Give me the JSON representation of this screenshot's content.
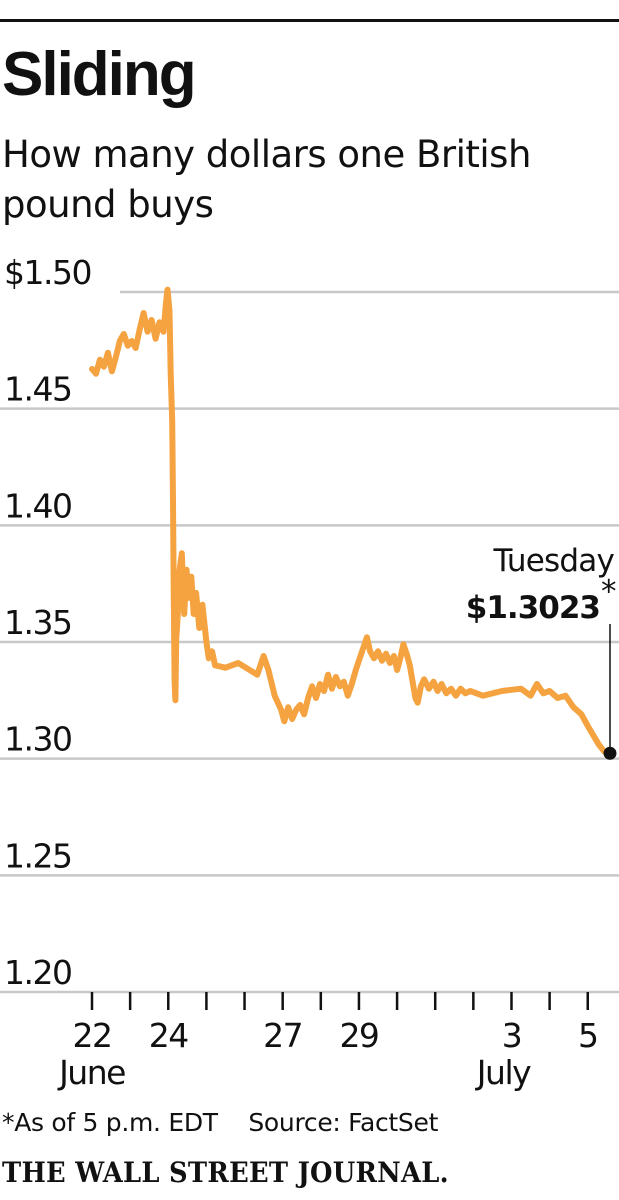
{
  "header": {
    "title": "Sliding",
    "subtitle": "How many dollars one British pound buys"
  },
  "footer": {
    "footnote": "*As of 5 p.m. EDT    Source: FactSet",
    "logo": "THE WALL STREET JOURNAL."
  },
  "colors": {
    "line": "#F4A340",
    "grid": "#C8C8C8",
    "text": "#111111"
  },
  "chart_data": {
    "type": "line",
    "title": "Sliding",
    "subtitle": "How many dollars one British pound buys",
    "ylim": [
      1.2,
      1.5
    ],
    "y_ticks": [
      {
        "value": 1.5,
        "label": "$1.50"
      },
      {
        "value": 1.45,
        "label": "1.45"
      },
      {
        "value": 1.4,
        "label": "1.40"
      },
      {
        "value": 1.35,
        "label": "1.35"
      },
      {
        "value": 1.3,
        "label": "1.30"
      },
      {
        "value": 1.25,
        "label": "1.25"
      },
      {
        "value": 1.2,
        "label": "1.20"
      }
    ],
    "grid": true,
    "x_ticks": [
      {
        "date": "2016-06-22",
        "label": "22",
        "sublabel": "June"
      },
      {
        "date": "2016-06-23",
        "label": "",
        "sublabel": ""
      },
      {
        "date": "2016-06-24",
        "label": "24",
        "sublabel": ""
      },
      {
        "date": "2016-06-25",
        "label": "",
        "sublabel": ""
      },
      {
        "date": "2016-06-26",
        "label": "",
        "sublabel": ""
      },
      {
        "date": "2016-06-27",
        "label": "27",
        "sublabel": ""
      },
      {
        "date": "2016-06-28",
        "label": "",
        "sublabel": ""
      },
      {
        "date": "2016-06-29",
        "label": "29",
        "sublabel": ""
      },
      {
        "date": "2016-06-30",
        "label": "",
        "sublabel": ""
      },
      {
        "date": "2016-07-01",
        "label": "",
        "sublabel": ""
      },
      {
        "date": "2016-07-02",
        "label": "",
        "sublabel": ""
      },
      {
        "date": "2016-07-03",
        "label": "3",
        "sublabel": "July"
      },
      {
        "date": "2016-07-04",
        "label": "",
        "sublabel": ""
      },
      {
        "date": "2016-07-05",
        "label": "5",
        "sublabel": ""
      }
    ],
    "series": [
      {
        "points": [
          [
            "2016-06-22T00:00",
            1.467
          ],
          [
            "2016-06-22T02:30",
            1.465
          ],
          [
            "2016-06-22T05:00",
            1.471
          ],
          [
            "2016-06-22T07:30",
            1.468
          ],
          [
            "2016-06-22T10:00",
            1.474
          ],
          [
            "2016-06-22T12:30",
            1.466
          ],
          [
            "2016-06-22T15:00",
            1.472
          ],
          [
            "2016-06-22T17:30",
            1.479
          ],
          [
            "2016-06-22T20:00",
            1.482
          ],
          [
            "2016-06-22T22:30",
            1.477
          ],
          [
            "2016-06-23T01:00",
            1.479
          ],
          [
            "2016-06-23T03:30",
            1.476
          ],
          [
            "2016-06-23T06:00",
            1.484
          ],
          [
            "2016-06-23T08:30",
            1.491
          ],
          [
            "2016-06-23T11:00",
            1.483
          ],
          [
            "2016-06-23T13:30",
            1.488
          ],
          [
            "2016-06-23T16:00",
            1.48
          ],
          [
            "2016-06-23T18:30",
            1.487
          ],
          [
            "2016-06-23T21:00",
            1.483
          ],
          [
            "2016-06-23T22:30",
            1.495
          ],
          [
            "2016-06-23T23:30",
            1.501
          ],
          [
            "2016-06-24T00:45",
            1.492
          ],
          [
            "2016-06-24T01:30",
            1.465
          ],
          [
            "2016-06-24T02:30",
            1.445
          ],
          [
            "2016-06-24T03:00",
            1.41
          ],
          [
            "2016-06-24T03:30",
            1.368
          ],
          [
            "2016-06-24T04:00",
            1.333
          ],
          [
            "2016-06-24T04:30",
            1.325
          ],
          [
            "2016-06-24T05:00",
            1.351
          ],
          [
            "2016-06-24T06:00",
            1.362
          ],
          [
            "2016-06-24T07:00",
            1.38
          ],
          [
            "2016-06-24T08:30",
            1.388
          ],
          [
            "2016-06-24T10:00",
            1.362
          ],
          [
            "2016-06-24T11:30",
            1.381
          ],
          [
            "2016-06-24T13:00",
            1.369
          ],
          [
            "2016-06-24T14:30",
            1.378
          ],
          [
            "2016-06-24T16:00",
            1.362
          ],
          [
            "2016-06-24T17:30",
            1.371
          ],
          [
            "2016-06-24T19:30",
            1.356
          ],
          [
            "2016-06-24T21:30",
            1.366
          ],
          [
            "2016-06-24T23:59",
            1.35
          ],
          [
            "2016-06-25T01:30",
            1.343
          ],
          [
            "2016-06-25T03:30",
            1.346
          ],
          [
            "2016-06-25T05:30",
            1.34
          ],
          [
            "2016-06-25T12:00",
            1.339
          ],
          [
            "2016-06-25T20:00",
            1.341
          ],
          [
            "2016-06-26T08:00",
            1.336
          ],
          [
            "2016-06-26T12:00",
            1.344
          ],
          [
            "2016-06-26T15:00",
            1.338
          ],
          [
            "2016-06-26T19:00",
            1.327
          ],
          [
            "2016-06-26T23:00",
            1.321
          ],
          [
            "2016-06-27T01:00",
            1.316
          ],
          [
            "2016-06-27T03:30",
            1.322
          ],
          [
            "2016-06-27T06:00",
            1.317
          ],
          [
            "2016-06-27T08:30",
            1.321
          ],
          [
            "2016-06-27T11:00",
            1.323
          ],
          [
            "2016-06-27T13:30",
            1.319
          ],
          [
            "2016-06-27T16:00",
            1.326
          ],
          [
            "2016-06-27T18:30",
            1.331
          ],
          [
            "2016-06-27T21:00",
            1.326
          ],
          [
            "2016-06-27T23:30",
            1.332
          ],
          [
            "2016-06-28T02:00",
            1.329
          ],
          [
            "2016-06-28T04:30",
            1.336
          ],
          [
            "2016-06-28T07:00",
            1.33
          ],
          [
            "2016-06-28T09:30",
            1.335
          ],
          [
            "2016-06-28T12:00",
            1.331
          ],
          [
            "2016-06-28T14:30",
            1.333
          ],
          [
            "2016-06-28T17:00",
            1.327
          ],
          [
            "2016-06-28T19:30",
            1.332
          ],
          [
            "2016-06-28T22:00",
            1.338
          ],
          [
            "2016-06-29T00:30",
            1.343
          ],
          [
            "2016-06-29T03:00",
            1.348
          ],
          [
            "2016-06-29T05:00",
            1.352
          ],
          [
            "2016-06-29T07:00",
            1.346
          ],
          [
            "2016-06-29T09:30",
            1.343
          ],
          [
            "2016-06-29T12:00",
            1.346
          ],
          [
            "2016-06-29T14:30",
            1.342
          ],
          [
            "2016-06-29T17:00",
            1.345
          ],
          [
            "2016-06-29T19:30",
            1.341
          ],
          [
            "2016-06-29T22:00",
            1.344
          ],
          [
            "2016-06-30T00:00",
            1.338
          ],
          [
            "2016-06-30T02:00",
            1.343
          ],
          [
            "2016-06-30T04:00",
            1.349
          ],
          [
            "2016-06-30T06:00",
            1.345
          ],
          [
            "2016-06-30T08:00",
            1.34
          ],
          [
            "2016-06-30T10:00",
            1.332
          ],
          [
            "2016-06-30T11:30",
            1.326
          ],
          [
            "2016-06-30T13:00",
            1.324
          ],
          [
            "2016-06-30T15:00",
            1.331
          ],
          [
            "2016-06-30T17:00",
            1.334
          ],
          [
            "2016-06-30T20:00",
            1.33
          ],
          [
            "2016-06-30T23:00",
            1.333
          ],
          [
            "2016-07-01T01:30",
            1.329
          ],
          [
            "2016-07-01T04:00",
            1.332
          ],
          [
            "2016-07-01T07:00",
            1.328
          ],
          [
            "2016-07-01T10:00",
            1.33
          ],
          [
            "2016-07-01T13:00",
            1.327
          ],
          [
            "2016-07-01T16:00",
            1.33
          ],
          [
            "2016-07-01T19:00",
            1.328
          ],
          [
            "2016-07-01T22:00",
            1.329
          ],
          [
            "2016-07-02T06:00",
            1.327
          ],
          [
            "2016-07-02T18:00",
            1.329
          ],
          [
            "2016-07-03T06:00",
            1.33
          ],
          [
            "2016-07-03T12:00",
            1.327
          ],
          [
            "2016-07-03T16:00",
            1.332
          ],
          [
            "2016-07-03T20:00",
            1.328
          ],
          [
            "2016-07-04T00:00",
            1.329
          ],
          [
            "2016-07-04T05:00",
            1.326
          ],
          [
            "2016-07-04T10:00",
            1.327
          ],
          [
            "2016-07-04T15:00",
            1.322
          ],
          [
            "2016-07-04T20:00",
            1.319
          ],
          [
            "2016-07-05T00:00",
            1.314
          ],
          [
            "2016-07-05T03:30",
            1.31
          ],
          [
            "2016-07-05T07:00",
            1.306
          ],
          [
            "2016-07-05T10:30",
            1.303
          ],
          [
            "2016-07-05T14:00",
            1.3023
          ]
        ]
      }
    ],
    "annotation": {
      "label": "Tuesday",
      "value_text": "$1.3023",
      "marker": "*",
      "value": 1.3023,
      "date": "2016-07-05T14:00"
    }
  }
}
